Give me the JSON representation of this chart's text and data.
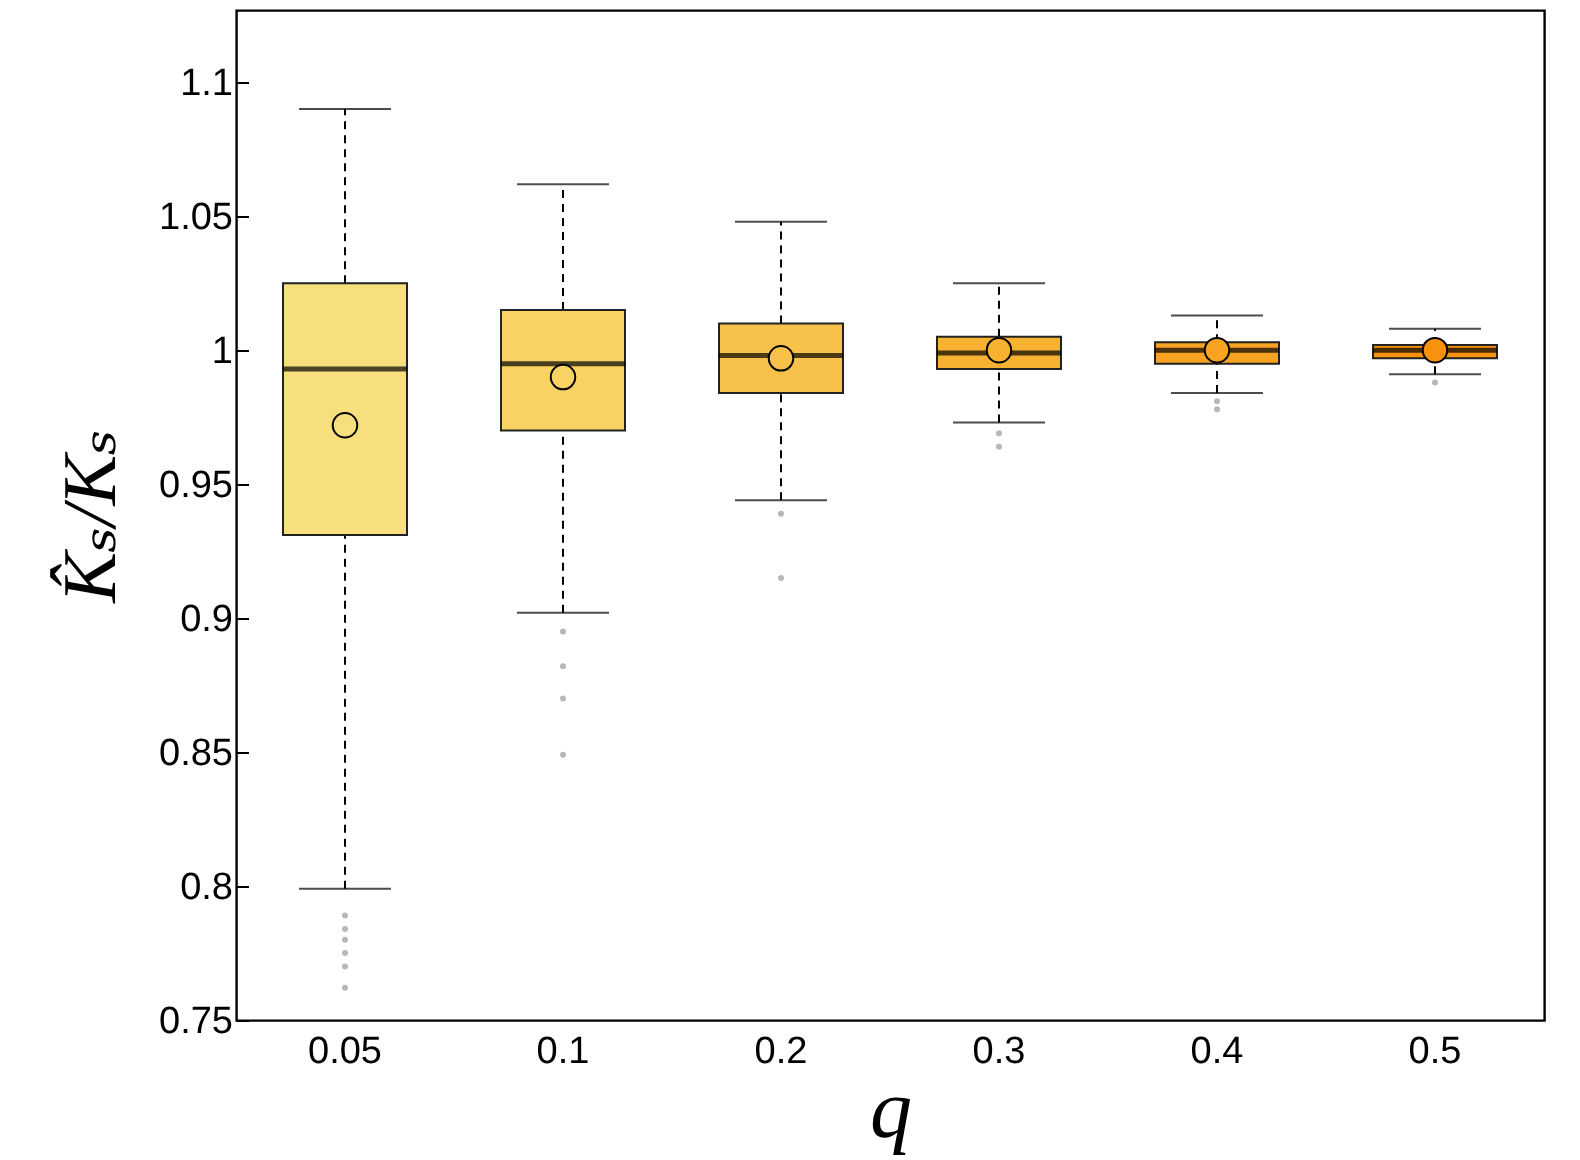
{
  "chart_data": {
    "type": "box",
    "xlabel": "q",
    "ylabel": "K̂ₛ/Kₛ",
    "categories": [
      "0.05",
      "0.1",
      "0.2",
      "0.3",
      "0.4",
      "0.5"
    ],
    "colors": [
      "#f8df7e",
      "#f8d262",
      "#f8c24a",
      "#f8b232",
      "#f8a422",
      "#f8920e"
    ],
    "boxes": [
      {
        "low": 0.799,
        "q1": 0.931,
        "median": 0.993,
        "q3": 1.025,
        "high": 1.09,
        "mean": 0.972,
        "outliers": [
          0.789,
          0.784,
          0.78,
          0.775,
          0.77,
          0.762
        ]
      },
      {
        "low": 0.902,
        "q1": 0.97,
        "median": 0.995,
        "q3": 1.015,
        "high": 1.062,
        "mean": 0.99,
        "outliers": [
          0.895,
          0.882,
          0.87,
          0.849
        ]
      },
      {
        "low": 0.944,
        "q1": 0.984,
        "median": 0.998,
        "q3": 1.01,
        "high": 1.048,
        "mean": 0.997,
        "outliers": [
          0.939,
          0.915
        ]
      },
      {
        "low": 0.973,
        "q1": 0.993,
        "median": 0.999,
        "q3": 1.005,
        "high": 1.025,
        "mean": 1.0,
        "outliers": [
          0.969,
          0.964
        ]
      },
      {
        "low": 0.984,
        "q1": 0.995,
        "median": 1.0,
        "q3": 1.003,
        "high": 1.013,
        "mean": 1.0,
        "outliers": [
          0.981,
          0.978
        ]
      },
      {
        "low": 0.991,
        "q1": 0.997,
        "median": 1.0,
        "q3": 1.002,
        "high": 1.008,
        "mean": 1.0,
        "outliers": [
          0.988
        ]
      }
    ],
    "ylim": [
      0.75,
      1.127
    ],
    "yticks": [
      0.75,
      0.8,
      0.85,
      0.9,
      0.95,
      1,
      1.05,
      1.1
    ],
    "grid": false,
    "marker": "circle"
  }
}
